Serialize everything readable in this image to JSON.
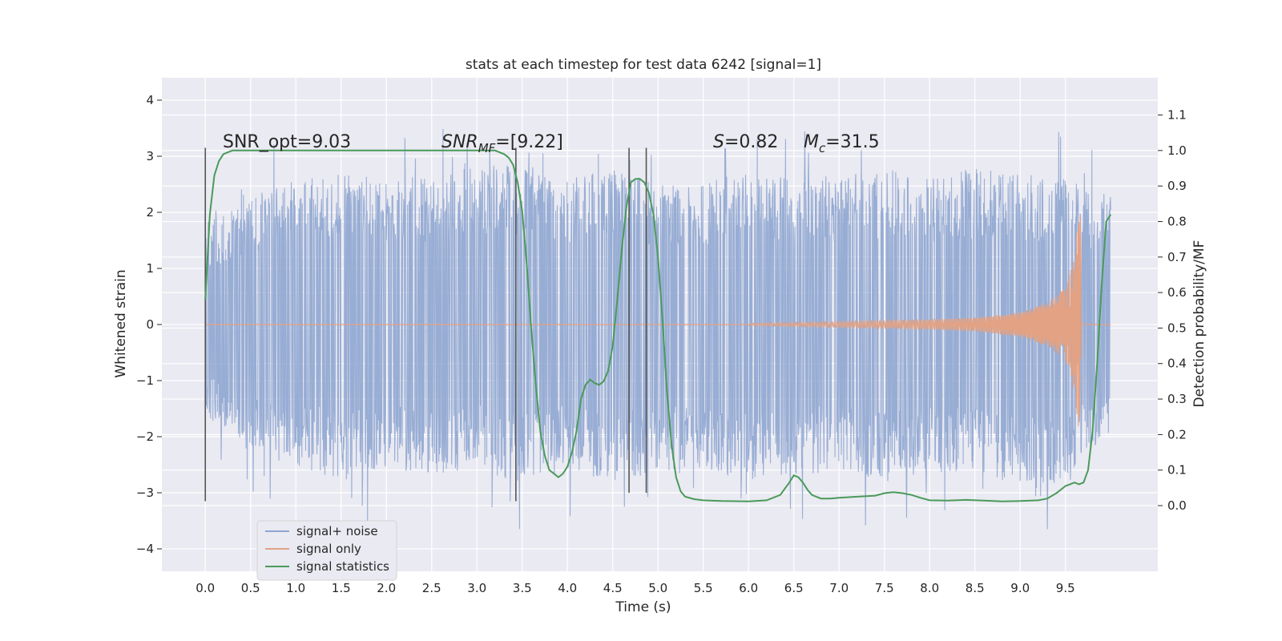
{
  "chart_data": {
    "type": "line",
    "title": "stats at each timestep for test data 6242 [signal=1]",
    "xlabel": "Time (s)",
    "ylabel": "Whitened strain",
    "y2label": "Detection probability/MF",
    "xlim": [
      -0.48,
      10.52
    ],
    "ylim": [
      -4.4,
      4.4
    ],
    "y2lim": [
      -0.185,
      1.205
    ],
    "x_ticks": [
      "0.0",
      "0.5",
      "1.0",
      "1.5",
      "2.0",
      "2.5",
      "3.0",
      "3.5",
      "4.0",
      "4.5",
      "5.0",
      "5.5",
      "6.0",
      "6.5",
      "7.0",
      "7.5",
      "8.0",
      "8.5",
      "9.0",
      "9.5"
    ],
    "y_ticks": [
      "4",
      "3",
      "2",
      "1",
      "0",
      "−1",
      "−2",
      "−3",
      "−4"
    ],
    "y2_ticks": [
      "1.1",
      "1.0",
      "0.9",
      "0.8",
      "0.7",
      "0.6",
      "0.5",
      "0.4",
      "0.3",
      "0.2",
      "0.1",
      "0.0"
    ],
    "grid": true,
    "legend_position": "lower-left",
    "annotations": {
      "snr_opt": "SNR_opt=9.03",
      "snr_mf": "SNR_MF=[9.22]",
      "s_value": "S=0.82",
      "mc_value": "M_c=31.5"
    },
    "vertical_markers": [
      {
        "x": 0.0,
        "y_range": [
          -3.15,
          3.15
        ]
      },
      {
        "x": 3.43,
        "y_range": [
          -3.15,
          3.15
        ]
      },
      {
        "x": 4.68,
        "y_range": [
          -3.0,
          3.15
        ]
      },
      {
        "x": 4.87,
        "y_range": [
          -3.0,
          3.15
        ]
      }
    ],
    "series": [
      {
        "name": "signal+ noise",
        "color": "#8fa6d0",
        "axis": "left",
        "envelope_upper": [
          [
            0.0,
            1.8
          ],
          [
            0.5,
            2.3
          ],
          [
            1.0,
            2.6
          ],
          [
            1.5,
            2.7
          ],
          [
            2.0,
            2.6
          ],
          [
            2.5,
            2.7
          ],
          [
            3.0,
            2.8
          ],
          [
            3.5,
            2.9
          ],
          [
            4.0,
            2.6
          ],
          [
            4.5,
            2.8
          ],
          [
            5.0,
            2.5
          ],
          [
            5.5,
            2.6
          ],
          [
            6.0,
            2.7
          ],
          [
            6.5,
            2.6
          ],
          [
            7.0,
            2.7
          ],
          [
            7.5,
            2.8
          ],
          [
            8.0,
            2.6
          ],
          [
            8.5,
            2.8
          ],
          [
            9.0,
            2.7
          ],
          [
            9.5,
            2.6
          ],
          [
            10.0,
            2.3
          ]
        ],
        "envelope_lower": [
          [
            0.0,
            -1.6
          ],
          [
            0.5,
            -2.3
          ],
          [
            1.0,
            -2.5
          ],
          [
            1.5,
            -2.8
          ],
          [
            2.0,
            -2.6
          ],
          [
            2.5,
            -2.7
          ],
          [
            3.0,
            -2.6
          ],
          [
            3.5,
            -2.9
          ],
          [
            4.0,
            -2.6
          ],
          [
            4.5,
            -2.8
          ],
          [
            5.0,
            -2.7
          ],
          [
            5.5,
            -2.6
          ],
          [
            6.0,
            -2.8
          ],
          [
            6.5,
            -2.7
          ],
          [
            7.0,
            -2.6
          ],
          [
            7.5,
            -2.8
          ],
          [
            8.0,
            -2.7
          ],
          [
            8.5,
            -2.6
          ],
          [
            9.0,
            -2.9
          ],
          [
            9.5,
            -2.8
          ],
          [
            10.0,
            -1.9
          ]
        ]
      },
      {
        "name": "signal only",
        "color": "#e3a284",
        "axis": "left",
        "amplitude": [
          [
            6.0,
            0.02
          ],
          [
            7.0,
            0.05
          ],
          [
            8.0,
            0.09
          ],
          [
            8.5,
            0.12
          ],
          [
            9.0,
            0.22
          ],
          [
            9.3,
            0.38
          ],
          [
            9.5,
            0.65
          ],
          [
            9.6,
            1.2
          ],
          [
            9.66,
            2.3
          ],
          [
            9.68,
            0.3
          ],
          [
            9.7,
            0.0
          ]
        ]
      },
      {
        "name": "signal statistics",
        "color": "#4a9a5a",
        "axis": "right",
        "x": [
          0.0,
          0.05,
          0.1,
          0.15,
          0.2,
          0.3,
          0.5,
          0.8,
          1.0,
          1.5,
          2.0,
          2.5,
          3.0,
          3.2,
          3.3,
          3.35,
          3.4,
          3.45,
          3.5,
          3.55,
          3.6,
          3.65,
          3.7,
          3.75,
          3.8,
          3.85,
          3.9,
          3.95,
          4.0,
          4.05,
          4.1,
          4.15,
          4.2,
          4.25,
          4.3,
          4.35,
          4.4,
          4.45,
          4.5,
          4.55,
          4.6,
          4.65,
          4.7,
          4.75,
          4.8,
          4.85,
          4.9,
          4.95,
          5.0,
          5.05,
          5.1,
          5.15,
          5.2,
          5.25,
          5.3,
          5.4,
          5.5,
          5.7,
          6.0,
          6.2,
          6.35,
          6.45,
          6.5,
          6.55,
          6.6,
          6.65,
          6.7,
          6.8,
          6.9,
          7.0,
          7.2,
          7.4,
          7.5,
          7.6,
          7.7,
          7.8,
          7.9,
          8.0,
          8.2,
          8.4,
          8.6,
          8.8,
          9.0,
          9.2,
          9.3,
          9.4,
          9.5,
          9.55,
          9.6,
          9.65,
          9.7,
          9.75,
          9.8,
          9.85,
          9.9,
          9.95,
          10.0
        ],
        "y": [
          0.58,
          0.82,
          0.93,
          0.97,
          0.99,
          1.0,
          1.0,
          1.0,
          1.0,
          1.0,
          1.0,
          1.0,
          1.0,
          1.0,
          0.99,
          0.98,
          0.96,
          0.91,
          0.83,
          0.68,
          0.5,
          0.34,
          0.21,
          0.14,
          0.1,
          0.09,
          0.08,
          0.09,
          0.11,
          0.15,
          0.21,
          0.3,
          0.34,
          0.355,
          0.345,
          0.34,
          0.35,
          0.38,
          0.45,
          0.58,
          0.72,
          0.84,
          0.91,
          0.92,
          0.92,
          0.91,
          0.88,
          0.82,
          0.7,
          0.52,
          0.32,
          0.17,
          0.08,
          0.04,
          0.025,
          0.018,
          0.015,
          0.013,
          0.012,
          0.015,
          0.03,
          0.065,
          0.085,
          0.08,
          0.065,
          0.045,
          0.03,
          0.02,
          0.02,
          0.022,
          0.025,
          0.028,
          0.035,
          0.038,
          0.035,
          0.03,
          0.022,
          0.015,
          0.014,
          0.016,
          0.014,
          0.012,
          0.013,
          0.015,
          0.02,
          0.035,
          0.055,
          0.06,
          0.065,
          0.06,
          0.065,
          0.1,
          0.21,
          0.4,
          0.62,
          0.8,
          0.82
        ]
      }
    ]
  }
}
